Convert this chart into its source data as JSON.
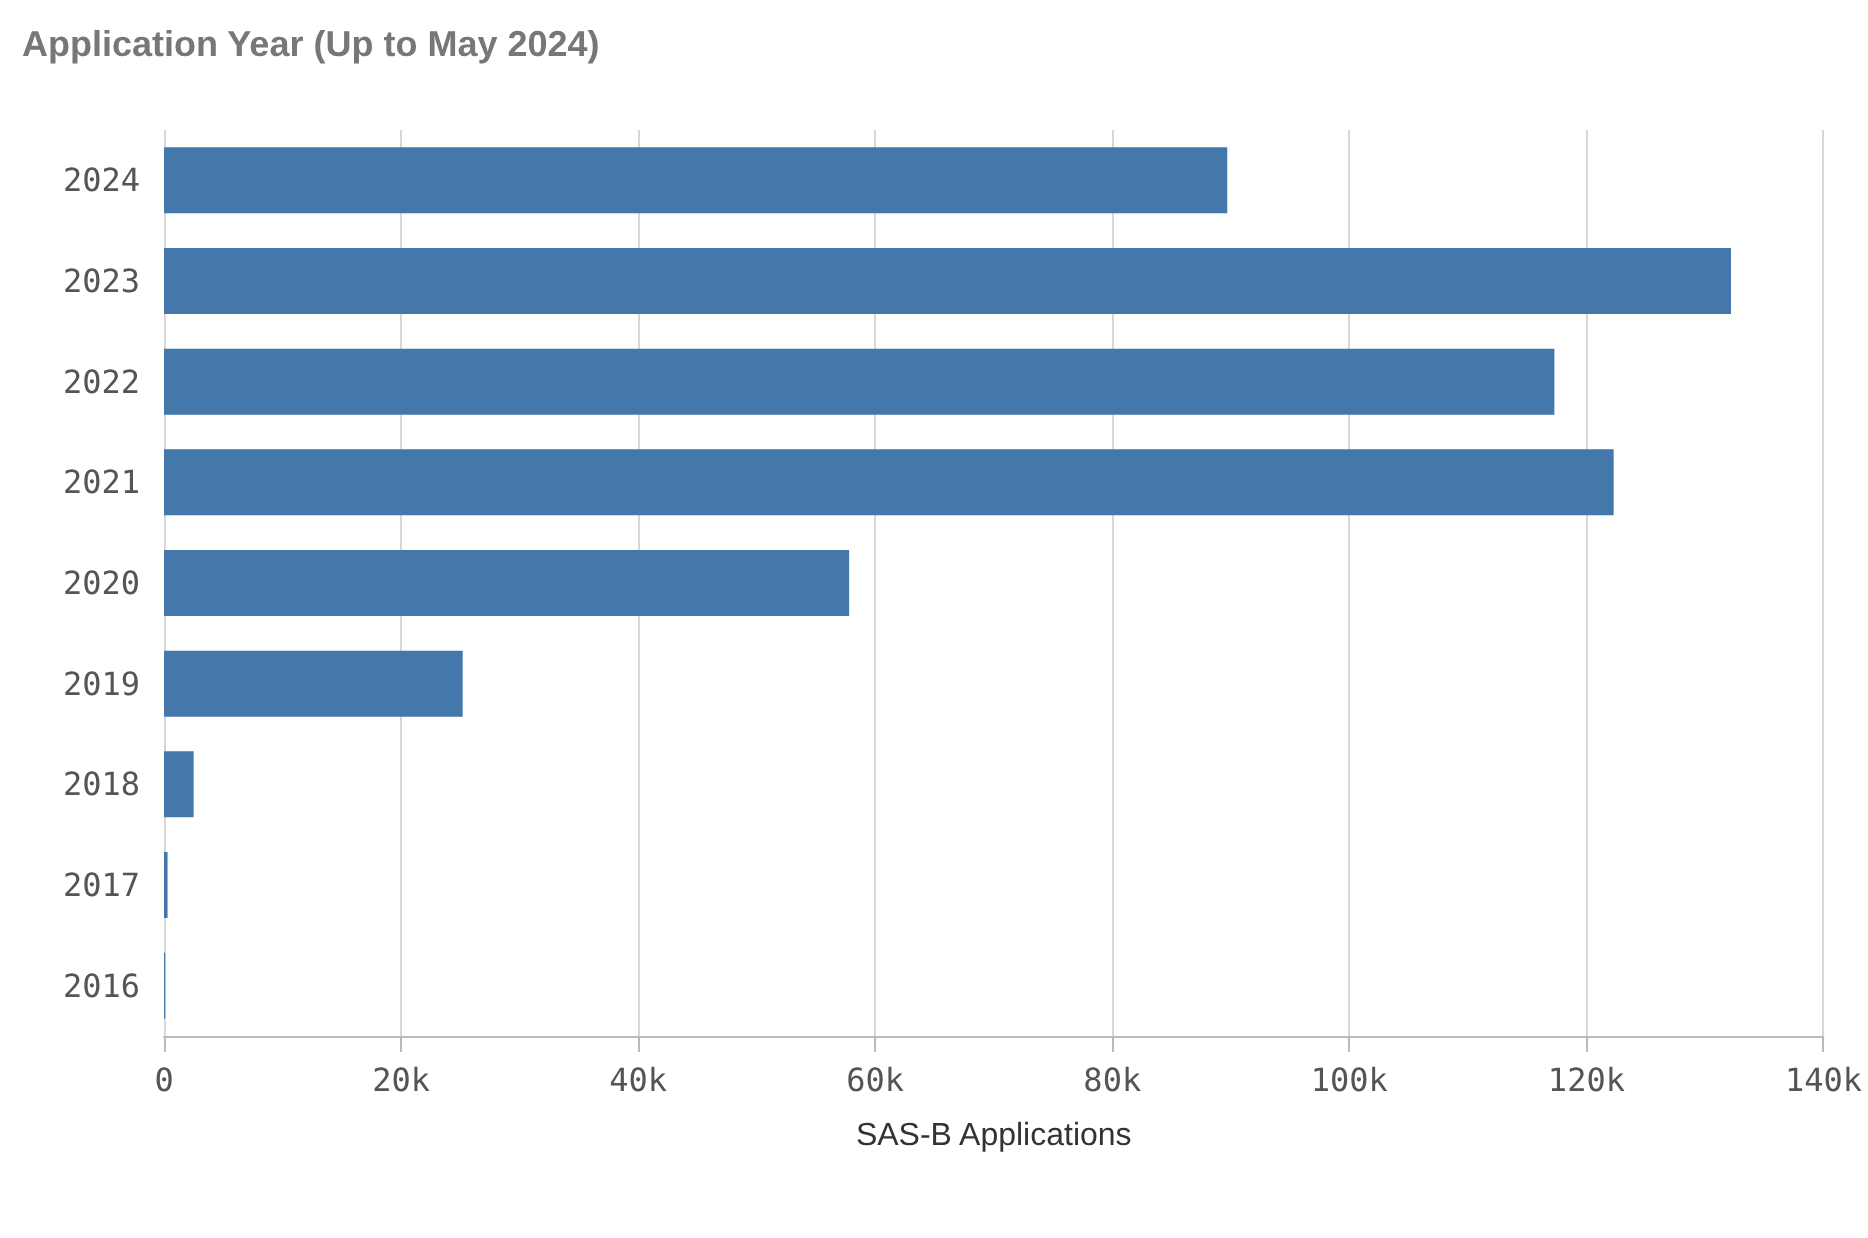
{
  "chart_data": {
    "type": "bar",
    "orientation": "horizontal",
    "title": "Application Year (Up to May 2024)",
    "xlabel": "SAS-B Applications",
    "categories": [
      "2024",
      "2023",
      "2022",
      "2021",
      "2020",
      "2019",
      "2018",
      "2017",
      "2016"
    ],
    "values": [
      89700,
      132200,
      117300,
      122300,
      57800,
      25200,
      2500,
      300,
      100
    ],
    "color": "#4477aa",
    "xlim": [
      0,
      140000
    ],
    "xticks": [
      0,
      {
        "value": 20000,
        "label": "20k"
      },
      {
        "value": 40000,
        "label": "40k"
      },
      {
        "value": 60000,
        "label": "60k"
      },
      {
        "value": 80000,
        "label": "80k"
      },
      {
        "value": 100000,
        "label": "100k"
      },
      {
        "value": 120000,
        "label": "120k"
      },
      {
        "value": 140000,
        "label": "140k"
      }
    ],
    "grid": "x"
  }
}
